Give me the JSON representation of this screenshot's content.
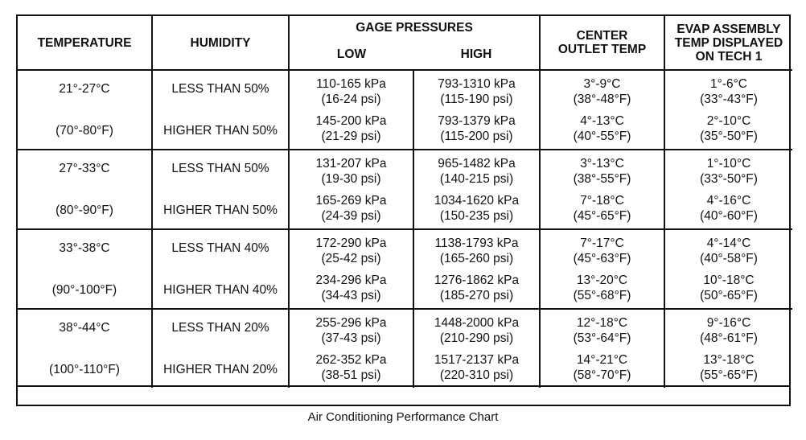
{
  "headers": {
    "temperature": "TEMPERATURE",
    "humidity": "HUMIDITY",
    "gage_pressures": "GAGE PRESSURES",
    "low": "LOW",
    "high": "HIGH",
    "center_outlet_line1": "CENTER",
    "center_outlet_line2": "OUTLET TEMP",
    "evap_line1": "EVAP ASSEMBLY",
    "evap_line2": "TEMP DISPLAYED",
    "evap_line3": "ON TECH 1"
  },
  "groups": [
    {
      "temp_c": "21°-27°C",
      "temp_f": "(70°-80°F)",
      "rows": [
        {
          "humidity": "LESS THAN 50%",
          "low_kpa": "110-165 kPa",
          "low_psi": "(16-24 psi)",
          "high_kpa": "793-1310 kPa",
          "high_psi": "(115-190 psi)",
          "outlet_c": "3°-9°C",
          "outlet_f": "(38°-48°F)",
          "evap_c": "1°-6°C",
          "evap_f": "(33°-43°F)"
        },
        {
          "humidity": "HIGHER THAN 50%",
          "low_kpa": "145-200 kPa",
          "low_psi": "(21-29 psi)",
          "high_kpa": "793-1379 kPa",
          "high_psi": "(115-200 psi)",
          "outlet_c": "4°-13°C",
          "outlet_f": "(40°-55°F)",
          "evap_c": "2°-10°C",
          "evap_f": "(35°-50°F)"
        }
      ]
    },
    {
      "temp_c": "27°-33°C",
      "temp_f": "(80°-90°F)",
      "rows": [
        {
          "humidity": "LESS THAN 50%",
          "low_kpa": "131-207 kPa",
          "low_psi": "(19-30 psi)",
          "high_kpa": "965-1482 kPa",
          "high_psi": "(140-215 psi)",
          "outlet_c": "3°-13°C",
          "outlet_f": "(38°-55°F)",
          "evap_c": "1°-10°C",
          "evap_f": "(33°-50°F)"
        },
        {
          "humidity": "HIGHER THAN 50%",
          "low_kpa": "165-269 kPa",
          "low_psi": "(24-39 psi)",
          "high_kpa": "1034-1620 kPa",
          "high_psi": "(150-235 psi)",
          "outlet_c": "7°-18°C",
          "outlet_f": "(45°-65°F)",
          "evap_c": "4°-16°C",
          "evap_f": "(40°-60°F)"
        }
      ]
    },
    {
      "temp_c": "33°-38°C",
      "temp_f": "(90°-100°F)",
      "rows": [
        {
          "humidity": "LESS THAN 40%",
          "low_kpa": "172-290 kPa",
          "low_psi": "(25-42 psi)",
          "high_kpa": "1138-1793 kPa",
          "high_psi": "(165-260 psi)",
          "outlet_c": "7°-17°C",
          "outlet_f": "(45°-63°F)",
          "evap_c": "4°-14°C",
          "evap_f": "(40°-58°F)"
        },
        {
          "humidity": "HIGHER THAN 40%",
          "low_kpa": "234-296 kPa",
          "low_psi": "(34-43 psi)",
          "high_kpa": "1276-1862 kPa",
          "high_psi": "(185-270 psi)",
          "outlet_c": "13°-20°C",
          "outlet_f": "(55°-68°F)",
          "evap_c": "10°-18°C",
          "evap_f": "(50°-65°F)"
        }
      ]
    },
    {
      "temp_c": "38°-44°C",
      "temp_f": "(100°-110°F)",
      "rows": [
        {
          "humidity": "LESS THAN 20%",
          "low_kpa": "255-296 kPa",
          "low_psi": "(37-43 psi)",
          "high_kpa": "1448-2000 kPa",
          "high_psi": "(210-290 psi)",
          "outlet_c": "12°-18°C",
          "outlet_f": "(53°-64°F)",
          "evap_c": "9°-16°C",
          "evap_f": "(48°-61°F)"
        },
        {
          "humidity": "HIGHER THAN 20%",
          "low_kpa": "262-352 kPa",
          "low_psi": "(38-51 psi)",
          "high_kpa": "1517-2137 kPa",
          "high_psi": "(220-310 psi)",
          "outlet_c": "14°-21°C",
          "outlet_f": "(58°-70°F)",
          "evap_c": "13°-18°C",
          "evap_f": "(55°-65°F)"
        }
      ]
    }
  ],
  "caption": "Air Conditioning Performance Chart"
}
